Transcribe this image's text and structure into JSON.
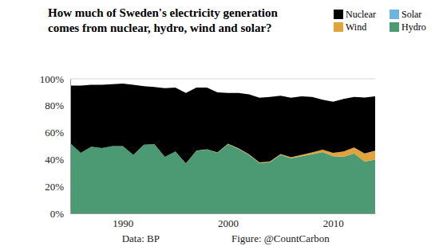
{
  "chart_data": {
    "type": "area",
    "stacked": true,
    "title": "How much of Sweden's electricity generation\ncomes from nuclear, hydro, wind and solar?",
    "annotations": [
      "Data: BP",
      "Figure: @CountCarbon"
    ],
    "legend": "upper right",
    "grid": true,
    "x": [
      1985,
      1986,
      1987,
      1988,
      1989,
      1990,
      1991,
      1992,
      1993,
      1994,
      1995,
      1996,
      1997,
      1998,
      1999,
      2000,
      2001,
      2002,
      2003,
      2004,
      2005,
      2006,
      2007,
      2008,
      2009,
      2010,
      2011,
      2012,
      2013,
      2014
    ],
    "xlim": [
      1985,
      2014
    ],
    "xticks": [
      1990,
      2000,
      2010
    ],
    "ylim": [
      0,
      100
    ],
    "yticks": [
      {
        "value": 0,
        "label": "0%"
      },
      {
        "value": 20,
        "label": "20%"
      },
      {
        "value": 40,
        "label": "40%"
      },
      {
        "value": 60,
        "label": "60%"
      },
      {
        "value": 80,
        "label": "80%"
      },
      {
        "value": 100,
        "label": "100%"
      }
    ],
    "series": [
      {
        "name": "Hydro",
        "color": "#4b9a74",
        "values": [
          52,
          45,
          49.5,
          48.5,
          50,
          50,
          43.5,
          51,
          51.5,
          42,
          46,
          37,
          46.5,
          47.5,
          45,
          51.5,
          48,
          43.5,
          37.5,
          38,
          43.5,
          41,
          42.5,
          44,
          45.5,
          42.5,
          42,
          44.5,
          38.5,
          40
        ]
      },
      {
        "name": "Wind",
        "color": "#e0a43a",
        "values": [
          0,
          0,
          0,
          0,
          0,
          0,
          0,
          0,
          0,
          0,
          0,
          0.1,
          0.1,
          0.2,
          0.2,
          0.3,
          0.3,
          0.4,
          0.4,
          0.6,
          0.6,
          0.7,
          1.0,
          1.3,
          1.8,
          2.4,
          4.0,
          4.5,
          6.0,
          6.5
        ]
      },
      {
        "name": "Solar",
        "color": "#6bb5e0",
        "values": [
          0,
          0,
          0,
          0,
          0,
          0,
          0,
          0,
          0,
          0,
          0,
          0,
          0,
          0,
          0,
          0,
          0,
          0,
          0,
          0,
          0,
          0,
          0,
          0,
          0,
          0,
          0.01,
          0.02,
          0.03,
          0.05
        ]
      },
      {
        "name": "Nuclear",
        "color": "#000000",
        "values": [
          43,
          50,
          46,
          47,
          46,
          46.5,
          52,
          43.5,
          42.5,
          51,
          47.5,
          52.4,
          46.9,
          45.8,
          44.8,
          37.7,
          41.2,
          44.6,
          48.1,
          47.9,
          43.4,
          44.3,
          43.5,
          41.2,
          37.2,
          38.1,
          39,
          37.5,
          41.5,
          40.5
        ]
      }
    ]
  }
}
